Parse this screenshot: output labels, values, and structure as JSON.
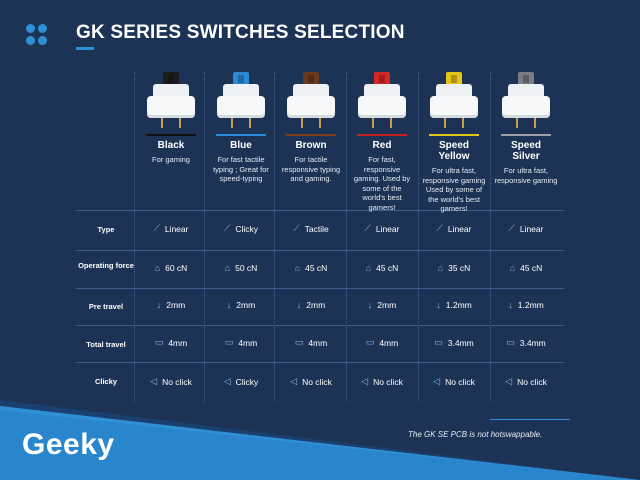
{
  "header": {
    "title": "GK SERIES SWITCHES SELECTION"
  },
  "switches": [
    {
      "name": "Black",
      "desc": "For gaming",
      "stem_color": "#1b1b1b",
      "accent": "#111111"
    },
    {
      "name": "Blue",
      "desc": "For fast tactile typing ; Great for speed-typing",
      "stem_color": "#2a8ad6",
      "accent": "#2a8ad6"
    },
    {
      "name": "Brown",
      "desc": "For tactile responsive typing and gaming.",
      "stem_color": "#6b3a1e",
      "accent": "#7a3e1a"
    },
    {
      "name": "Red",
      "desc": "For fast, responsive gaming. Used by some of the world's best gamers!",
      "stem_color": "#d42828",
      "accent": "#c42222"
    },
    {
      "name": "Speed Yellow",
      "desc": "For ultra fast, responsive gaming Used by some of the world's best gamers!",
      "stem_color": "#e6c51a",
      "accent": "#e6c51a"
    },
    {
      "name": "Speed Silver",
      "desc": "For ultra fast, responsive gaming",
      "stem_color": "#7a7d82",
      "accent": "#9aa0a6"
    }
  ],
  "rows": [
    {
      "label": "Type",
      "icon": "linear-graph-icon",
      "values": [
        "Linear",
        "Clicky",
        "Tactile",
        "Linear",
        "Linear",
        "Linear"
      ]
    },
    {
      "label": "Operating force",
      "icon": "weight-icon",
      "values": [
        "60 cN",
        "50 cN",
        "45 cN",
        "45 cN",
        "35 cN",
        "45 cN"
      ]
    },
    {
      "label": "Pre travel",
      "icon": "arrow-down-icon",
      "values": [
        "2mm",
        "2mm",
        "2mm",
        "2mm",
        "1.2mm",
        "1.2mm"
      ]
    },
    {
      "label": "Total travel",
      "icon": "bar-icon",
      "values": [
        "4mm",
        "4mm",
        "4mm",
        "4mm",
        "3.4mm",
        "3.4mm"
      ]
    },
    {
      "label": "Clicky",
      "icon": "speaker-icon",
      "values": [
        "No click",
        "Clicky",
        "No click",
        "No click",
        "No click",
        "No click"
      ]
    }
  ],
  "footer": {
    "note": "The GK SE PCB is not hotswappable.",
    "brand": "Geeky"
  },
  "colors": {
    "background": "#1c3356",
    "accent": "#2f90d6",
    "band_dark": "#1a3d66",
    "band_light": "#2f90d6"
  }
}
